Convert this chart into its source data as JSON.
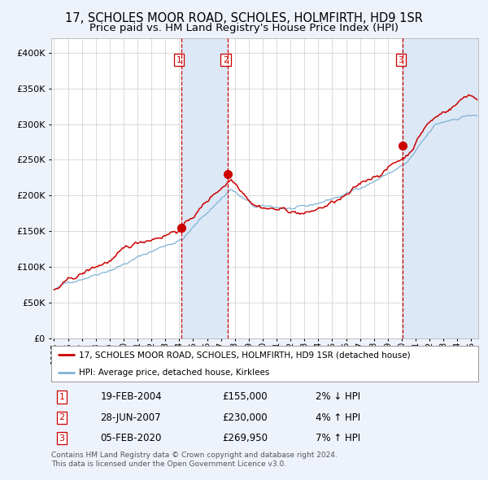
{
  "title1": "17, SCHOLES MOOR ROAD, SCHOLES, HOLMFIRTH, HD9 1SR",
  "title2": "Price paid vs. HM Land Registry's House Price Index (HPI)",
  "legend_label1": "17, SCHOLES MOOR ROAD, SCHOLES, HOLMFIRTH, HD9 1SR (detached house)",
  "legend_label2": "HPI: Average price, detached house, Kirklees",
  "footer": "Contains HM Land Registry data © Crown copyright and database right 2024.\nThis data is licensed under the Open Government Licence v3.0.",
  "transactions": [
    {
      "num": "1",
      "date": "19-FEB-2004",
      "date_x": 2004.13,
      "price": 155000,
      "hpi_pct": "2% ↓ HPI"
    },
    {
      "num": "2",
      "date": "28-JUN-2007",
      "date_x": 2007.49,
      "price": 230000,
      "hpi_pct": "4% ↑ HPI"
    },
    {
      "num": "3",
      "date": "05-FEB-2020",
      "date_x": 2020.09,
      "price": 269950,
      "hpi_pct": "7% ↑ HPI"
    }
  ],
  "ylim": [
    0,
    420000
  ],
  "yticks": [
    0,
    50000,
    100000,
    150000,
    200000,
    250000,
    300000,
    350000,
    400000
  ],
  "xlim_start": 1994.8,
  "xlim_end": 2025.5,
  "bg_color": "#eef2fb",
  "plot_bg": "#ffffff",
  "grid_color": "#cccccc",
  "line_color_red": "#cc0000",
  "line_color_blue": "#7fb3d3",
  "shade_color": "#dce8f5",
  "marker_color": "#cc0000",
  "vline_color": "#cc0000",
  "title_fontsize": 10.5,
  "subtitle_fontsize": 9.5,
  "tick_fontsize": 7.5,
  "ytick_fontsize": 8
}
